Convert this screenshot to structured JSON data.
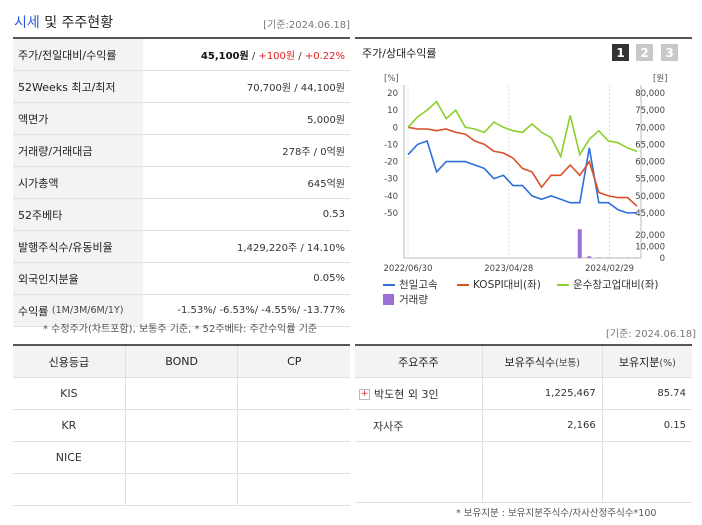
{
  "header": {
    "title_part1": "시세",
    "title_part2": "및 주주현황",
    "date": "[기준:2024.06.18]"
  },
  "stats": {
    "rows": [
      {
        "label": "주가/전일대비/수익률"
      },
      {
        "label": "52Weeks 최고/최저",
        "value": "70,700원 / 44,100원"
      },
      {
        "label": "액면가",
        "value": "5,000원"
      },
      {
        "label": "거래량/거래대금",
        "value": "278주 / 0억원"
      },
      {
        "label": "시가총액",
        "value": "645억원"
      },
      {
        "label": "52주베타",
        "value": "0.53"
      },
      {
        "label": "발행주식수/유동비율",
        "value": "1,429,220주 / 14.10%"
      },
      {
        "label": "외국인지분율",
        "value": "0.05%"
      },
      {
        "label": "수익률",
        "sub": "(1M/3M/6M/1Y)"
      }
    ],
    "price": "45,100원",
    "sep": " / ",
    "change": "+100원",
    "change_pct": "+0.22%",
    "returns": [
      "-1.53%",
      "-6.53%",
      "-4.55%",
      "-13.77%"
    ],
    "footnote": "* 수정주가(차트포함), 보통주 기준, * 52주베타: 주간수익률 기준"
  },
  "chart": {
    "title": "주가/상대수익률",
    "period_buttons": [
      "1",
      "2",
      "3"
    ],
    "left_unit": "[%]",
    "right_unit": "[원]",
    "left_ticks": [
      "20",
      "10",
      "0",
      "-10",
      "-20",
      "-30",
      "-40",
      "-50"
    ],
    "right_ticks": [
      "80,000",
      "75,000",
      "70,000",
      "65,000",
      "60,000",
      "55,000",
      "50,000",
      "45,000"
    ],
    "volume_ticks": [
      "20,000",
      "10,000",
      "0"
    ],
    "x_ticks": [
      "2022/06/30",
      "2023/04/28",
      "2024/02/29"
    ],
    "legend": [
      "천일고속",
      "KOSPI대비(좌)",
      "운수창고업대비(좌)",
      "거래량"
    ],
    "colors": {
      "price": "#2f6fd8",
      "kospi": "#d9502a",
      "sector": "#8ccf2a",
      "volume": "#9b6fd6"
    }
  },
  "chart_data": {
    "type": "line",
    "x": [
      "2022/06",
      "2022/07",
      "2022/08",
      "2022/09",
      "2022/10",
      "2022/11",
      "2022/12",
      "2023/01",
      "2023/02",
      "2023/03",
      "2023/04",
      "2023/05",
      "2023/06",
      "2023/07",
      "2023/08",
      "2023/09",
      "2023/10",
      "2023/11",
      "2023/12",
      "2024/01",
      "2024/02",
      "2024/03",
      "2024/04",
      "2024/05",
      "2024/06"
    ],
    "series": [
      {
        "name": "천일고속",
        "axis": "right",
        "values": [
          62000,
          65000,
          66000,
          57000,
          60000,
          60000,
          60000,
          59000,
          58000,
          55000,
          56000,
          53000,
          53000,
          50000,
          49000,
          50000,
          49000,
          48000,
          48000,
          64000,
          48000,
          48000,
          46000,
          45000,
          45100
        ]
      },
      {
        "name": "KOSPI대비(좌)",
        "axis": "left",
        "values": [
          0,
          -1,
          -1,
          -2,
          -1,
          -3,
          -4,
          -8,
          -10,
          -14,
          -15,
          -18,
          -24,
          -26,
          -35,
          -28,
          -28,
          -22,
          -28,
          -20,
          -38,
          -40,
          -41,
          -41,
          -46
        ]
      },
      {
        "name": "운수창고업대비(좌)",
        "axis": "left",
        "values": [
          0,
          6,
          10,
          15,
          5,
          10,
          0,
          -1,
          -3,
          3,
          0,
          -2,
          -3,
          2,
          -3,
          -6,
          -17,
          7,
          -16,
          -7,
          -2,
          -8,
          -9,
          -12,
          -14
        ]
      },
      {
        "name": "거래량",
        "axis": "volume",
        "values": [
          0,
          0,
          0,
          0,
          0,
          0,
          0,
          0,
          0,
          0,
          0,
          0,
          0,
          0,
          0,
          0,
          0,
          0,
          25000,
          1500,
          500,
          300,
          200,
          300,
          278
        ]
      }
    ],
    "ylim_left": [
      -50,
      20
    ],
    "ylim_right": [
      45000,
      80000
    ],
    "ylim_volume": [
      0,
      20000
    ]
  },
  "credit": {
    "headers": [
      "신용등급",
      "BOND",
      "CP"
    ],
    "rows": [
      {
        "name": "KIS",
        "bond": "",
        "cp": ""
      },
      {
        "name": "KR",
        "bond": "",
        "cp": ""
      },
      {
        "name": "NICE",
        "bond": "",
        "cp": ""
      },
      {
        "name": "",
        "bond": "",
        "cp": ""
      }
    ]
  },
  "holders": {
    "date": "[기준: 2024.06.18]",
    "headers": [
      "주요주주",
      "보유주식수",
      "(보통)",
      "보유지분",
      "(%)"
    ],
    "rows": [
      {
        "name": "박도현 외 3인",
        "shares": "1,225,467",
        "pct": "85.74"
      },
      {
        "name": "자사주",
        "shares": "2,166",
        "pct": "0.15"
      }
    ],
    "footnote": "* 보유지분 : 보유지분주식수/자사산정주식수*100"
  }
}
